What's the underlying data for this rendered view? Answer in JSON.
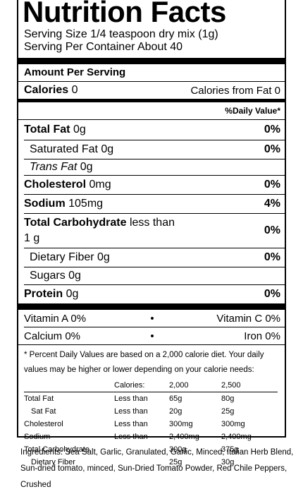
{
  "title": "Nutrition Facts",
  "serving_size": "Serving Size 1/4 teaspoon dry mix (1g)",
  "servings_per_container": "Serving Per Container About 40",
  "amount_per_serving": "Amount Per Serving",
  "calories": {
    "label": "Calories",
    "value": "0",
    "from_fat": "Calories from Fat 0"
  },
  "daily_value_header": "%Daily Value*",
  "nutrients": {
    "total_fat": {
      "label": "Total Fat",
      "amount": "0g",
      "dv": "0%"
    },
    "saturated_fat": {
      "label": "Saturated Fat",
      "amount": "0g",
      "dv": "0%"
    },
    "trans_fat": {
      "label": "Trans Fat",
      "amount": "0g"
    },
    "cholesterol": {
      "label": "Cholesterol",
      "amount": "0mg",
      "dv": "0%"
    },
    "sodium": {
      "label": "Sodium",
      "amount": "105mg",
      "dv": "4%"
    },
    "total_carb": {
      "label": "Total Carbohydrate",
      "amount_line1": "less than",
      "amount_line2": "1 g",
      "dv": "0%"
    },
    "dietary_fiber": {
      "label": "Dietary Fiber",
      "amount": "0g",
      "dv": "0%"
    },
    "sugars": {
      "label": "Sugars",
      "amount": "0g"
    },
    "protein": {
      "label": "Protein",
      "amount": "0g",
      "dv": "0%"
    }
  },
  "vitamins": [
    {
      "left": "Vitamin A 0%",
      "right": "Vitamin C 0%"
    },
    {
      "left": "Calcium 0%",
      "right": "Iron 0%"
    }
  ],
  "bullet": "•",
  "footnote": "* Percent Daily Values are based on a 2,000 calorie diet. Your daily values may be higher or lower depending on your calorie needs:",
  "reference_table": {
    "header": [
      "",
      "Calories:",
      "2,000",
      "2,500"
    ],
    "rows": [
      [
        "Total Fat",
        "Less than",
        "65g",
        "80g"
      ],
      [
        "Sat Fat",
        "Less than",
        "20g",
        "25g"
      ],
      [
        "Cholesterol",
        "Less than",
        "300mg",
        "300mg"
      ],
      [
        "Sodium",
        "Less than",
        "2,400mg",
        "2,400mg"
      ],
      [
        "Total Carbohydrate",
        "",
        "300g",
        "375g"
      ],
      [
        "Dietary Fiber",
        "",
        "25g",
        "30g"
      ]
    ]
  },
  "ingredients": "Ingredients: Sea Salt, Garlic, Granulated, Garlic, Minced, Italian Herb Blend, Sun-dried tomato, minced, Sun-Dried Tomato Powder, Red Chile Peppers, Crushed"
}
